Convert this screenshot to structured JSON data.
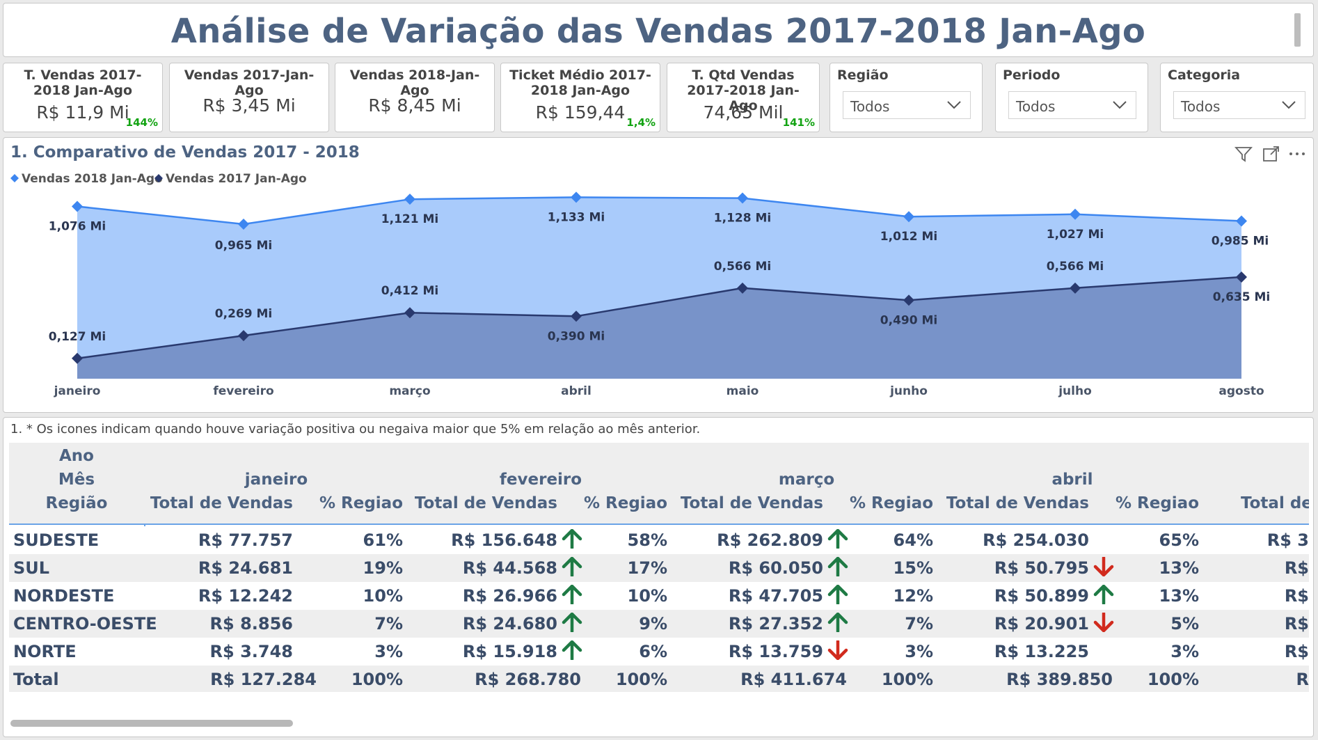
{
  "title": "Análise de Variação das Vendas 2017-2018 Jan-Ago",
  "kpis": [
    {
      "label": "T. Vendas 2017-2018 Jan-Ago",
      "value": "R$ 11,9 Mi",
      "delta": "144%"
    },
    {
      "label": "Vendas 2017-Jan-Ago",
      "value": "R$ 3,45 Mi",
      "delta": ""
    },
    {
      "label": "Vendas 2018-Jan-Ago",
      "value": "R$ 8,45 Mi",
      "delta": ""
    },
    {
      "label": "Ticket Médio 2017-2018 Jan-Ago",
      "value": "R$ 159,44",
      "delta": "1,4%"
    },
    {
      "label": "T. Qtd Vendas 2017-2018 Jan-Ago",
      "value": "74,65 Mil",
      "delta": "141%"
    }
  ],
  "slicers": [
    {
      "label": "Região",
      "value": "Todos"
    },
    {
      "label": "Periodo",
      "value": "Todos"
    },
    {
      "label": "Categoria",
      "value": "Todos"
    }
  ],
  "colors": {
    "accent": "#4d6382",
    "series_2018": "#3d86f0",
    "area_2018": "#a9cbfb",
    "series_2017": "#29396e",
    "area_2017": "#7893c9",
    "up": "#1e7a44",
    "down": "#d12a1d"
  },
  "chart_data": {
    "type": "area",
    "title": "1. Comparativo de Vendas 2017 - 2018",
    "categories": [
      "janeiro",
      "fevereiro",
      "março",
      "abril",
      "maio",
      "junho",
      "julho",
      "agosto"
    ],
    "series": [
      {
        "name": "Vendas 2018 Jan-Ago",
        "values": [
          1.076,
          0.965,
          1.121,
          1.133,
          1.128,
          1.012,
          1.027,
          0.985
        ],
        "labels": [
          "1,076 Mi",
          "0,965 Mi",
          "1,121 Mi",
          "1,133 Mi",
          "1,128 Mi",
          "1,012 Mi",
          "1,027 Mi",
          "0,985 Mi"
        ]
      },
      {
        "name": "Vendas 2017 Jan-Ago",
        "values": [
          0.127,
          0.269,
          0.412,
          0.39,
          0.566,
          0.49,
          0.566,
          0.635
        ],
        "labels": [
          "0,127 Mi",
          "0,269 Mi",
          "0,412 Mi",
          "0,390 Mi",
          "0,566 Mi",
          "0,490 Mi",
          "0,566 Mi",
          "0,635 Mi"
        ]
      }
    ],
    "legend": "top-left"
  },
  "table": {
    "note": "1. * Os icones indicam quando houve variação positiva ou negaiva maior que 5% em relação ao mês anterior.",
    "header_labels": [
      "Ano",
      "Mês",
      "Região"
    ],
    "months": [
      "janeiro",
      "fevereiro",
      "março",
      "abril"
    ],
    "col_sales": "Total de Vendas",
    "col_pct": "% Regiao",
    "partial_col": "Total de",
    "rows": [
      {
        "region": "SUDESTE",
        "cells": [
          {
            "v": "R$ 77.757",
            "p": "61%",
            "icon": ""
          },
          {
            "v": "R$ 156.648",
            "p": "58%",
            "icon": "up"
          },
          {
            "v": "R$ 262.809",
            "p": "64%",
            "icon": "up"
          },
          {
            "v": "R$ 254.030",
            "p": "65%",
            "icon": ""
          }
        ],
        "next": "R$ 3"
      },
      {
        "region": "SUL",
        "cells": [
          {
            "v": "R$ 24.681",
            "p": "19%",
            "icon": ""
          },
          {
            "v": "R$ 44.568",
            "p": "17%",
            "icon": "up"
          },
          {
            "v": "R$ 60.050",
            "p": "15%",
            "icon": "up"
          },
          {
            "v": "R$ 50.795",
            "p": "13%",
            "icon": "down"
          }
        ],
        "next": "R$"
      },
      {
        "region": "NORDESTE",
        "cells": [
          {
            "v": "R$ 12.242",
            "p": "10%",
            "icon": ""
          },
          {
            "v": "R$ 26.966",
            "p": "10%",
            "icon": "up"
          },
          {
            "v": "R$ 47.705",
            "p": "12%",
            "icon": "up"
          },
          {
            "v": "R$ 50.899",
            "p": "13%",
            "icon": "up"
          }
        ],
        "next": "R$"
      },
      {
        "region": "CENTRO-OESTE",
        "cells": [
          {
            "v": "R$ 8.856",
            "p": "7%",
            "icon": ""
          },
          {
            "v": "R$ 24.680",
            "p": "9%",
            "icon": "up"
          },
          {
            "v": "R$ 27.352",
            "p": "7%",
            "icon": "up"
          },
          {
            "v": "R$ 20.901",
            "p": "5%",
            "icon": "down"
          }
        ],
        "next": "R$"
      },
      {
        "region": "NORTE",
        "cells": [
          {
            "v": "R$ 3.748",
            "p": "3%",
            "icon": ""
          },
          {
            "v": "R$ 15.918",
            "p": "6%",
            "icon": "up"
          },
          {
            "v": "R$ 13.759",
            "p": "3%",
            "icon": "down"
          },
          {
            "v": "R$ 13.225",
            "p": "3%",
            "icon": ""
          }
        ],
        "next": "R$"
      },
      {
        "region": "Total",
        "cells": [
          {
            "v": "R$ 127.284",
            "p": "100%",
            "icon": ""
          },
          {
            "v": "R$ 268.780",
            "p": "100%",
            "icon": ""
          },
          {
            "v": "R$ 411.674",
            "p": "100%",
            "icon": ""
          },
          {
            "v": "R$ 389.850",
            "p": "100%",
            "icon": ""
          }
        ],
        "next": "R"
      }
    ]
  }
}
